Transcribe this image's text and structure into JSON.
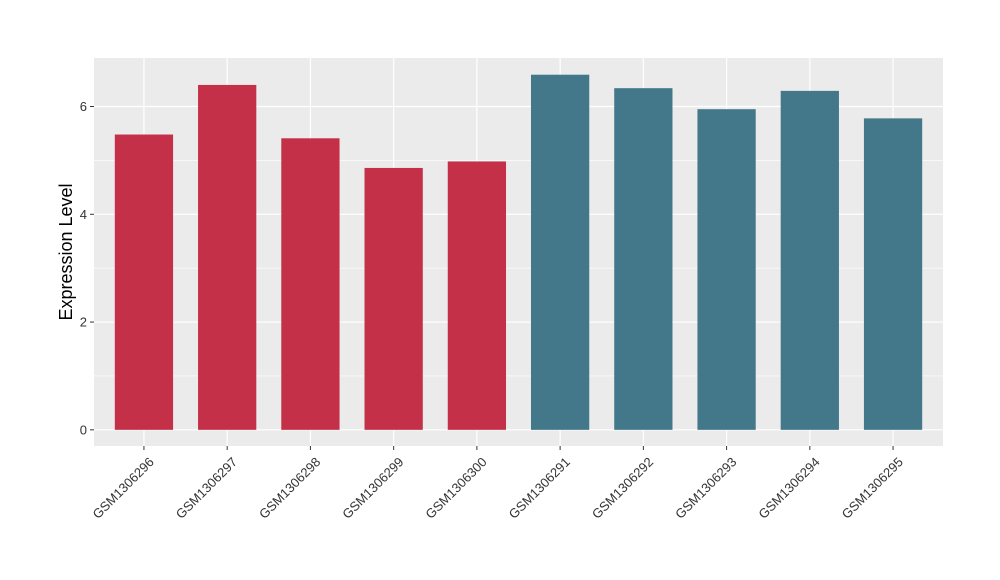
{
  "chart_data": {
    "type": "bar",
    "title": "",
    "xlabel": "",
    "ylabel": "Expression Level",
    "ylim": [
      -0.3,
      6.9
    ],
    "yticks": [
      0,
      2,
      4,
      6
    ],
    "grid": true,
    "legend": "none",
    "categories": [
      "GSM1306296",
      "GSM1306297",
      "GSM1306298",
      "GSM1306299",
      "GSM1306300",
      "GSM1306291",
      "GSM1306292",
      "GSM1306293",
      "GSM1306294",
      "GSM1306295"
    ],
    "values": [
      5.48,
      6.4,
      5.41,
      4.86,
      4.98,
      6.59,
      6.34,
      5.95,
      6.29,
      5.78
    ],
    "bar_colors": [
      "#c33047",
      "#c33047",
      "#c33047",
      "#c33047",
      "#c33047",
      "#42788a",
      "#42788a",
      "#42788a",
      "#42788a",
      "#42788a"
    ],
    "panel_background": "#ebebeb",
    "grid_color": "#ffffff"
  }
}
